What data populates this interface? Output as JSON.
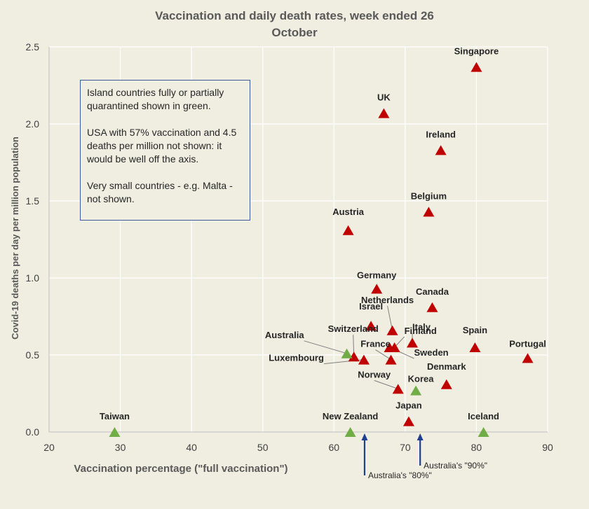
{
  "chart_data": {
    "type": "scatter",
    "title_lines": [
      "Vaccination and daily death rates, week ended 26",
      "October"
    ],
    "xlabel": "Vaccination percentage (\"full vaccination\")",
    "ylabel": "Covid-19 deaths per day per million population",
    "xlim": [
      20,
      90
    ],
    "ylim": [
      0,
      2.5
    ],
    "xticks": [
      "20",
      "30",
      "40",
      "50",
      "60",
      "70",
      "80",
      "90"
    ],
    "yticks": [
      "0.0",
      "0.5",
      "1.0",
      "1.5",
      "2.0",
      "2.5"
    ],
    "grid": true,
    "colors": {
      "other": "#c00000",
      "island": "#70ad47",
      "arrow": "#1f3f8f",
      "note_border": "#3c5a9a"
    },
    "points": [
      {
        "label": "Singapore",
        "x": 80,
        "y": 2.37,
        "group": "other"
      },
      {
        "label": "UK",
        "x": 67,
        "y": 2.07,
        "group": "other"
      },
      {
        "label": "Ireland",
        "x": 75,
        "y": 1.83,
        "group": "other"
      },
      {
        "label": "Belgium",
        "x": 73.3,
        "y": 1.43,
        "group": "other"
      },
      {
        "label": "Austria",
        "x": 62,
        "y": 1.31,
        "group": "other"
      },
      {
        "label": "Germany",
        "x": 66,
        "y": 0.93,
        "group": "other"
      },
      {
        "label": "Canada",
        "x": 73.8,
        "y": 0.81,
        "group": "other"
      },
      {
        "label": "Netherlands",
        "x": 68.2,
        "y": 0.66,
        "group": "other"
      },
      {
        "label": "Israel",
        "x": 65.2,
        "y": 0.69,
        "group": "other"
      },
      {
        "label": "Italy",
        "x": 71,
        "y": 0.58,
        "group": "other"
      },
      {
        "label": "Switzerland",
        "x": 62.8,
        "y": 0.49,
        "group": "other"
      },
      {
        "label": "Luxembourg",
        "x": 64.2,
        "y": 0.47,
        "group": "other"
      },
      {
        "label": "France",
        "x": 68,
        "y": 0.47,
        "group": "other"
      },
      {
        "label": "Finland",
        "x": 68.5,
        "y": 0.55,
        "group": "other"
      },
      {
        "label": "Sweden",
        "x": 67.8,
        "y": 0.55,
        "group": "other"
      },
      {
        "label": "Spain",
        "x": 79.8,
        "y": 0.55,
        "group": "other"
      },
      {
        "label": "Portugal",
        "x": 87.2,
        "y": 0.48,
        "group": "other"
      },
      {
        "label": "Denmark",
        "x": 75.8,
        "y": 0.31,
        "group": "other"
      },
      {
        "label": "Norway",
        "x": 69,
        "y": 0.28,
        "group": "other"
      },
      {
        "label": "Japan",
        "x": 70.5,
        "y": 0.07,
        "group": "other"
      },
      {
        "label": "Australia",
        "x": 61.8,
        "y": 0.51,
        "group": "island"
      },
      {
        "label": "Korea",
        "x": 71.5,
        "y": 0.27,
        "group": "island"
      },
      {
        "label": "Taiwan",
        "x": 29.2,
        "y": 0.0,
        "group": "island"
      },
      {
        "label": "New Zealand",
        "x": 62.3,
        "y": 0.0,
        "group": "island"
      },
      {
        "label": "Iceland",
        "x": 81,
        "y": 0.0,
        "group": "island"
      }
    ],
    "reference_arrows": [
      {
        "label": "Australia's \"80%\"",
        "x": 64.3
      },
      {
        "label": "Australia's \"90%\"",
        "x": 72.1
      }
    ],
    "note_lines": [
      "Island countries  fully or partially quarantined shown in green.",
      "USA with 57% vaccination and 4.5 deaths per million not shown: it would be well off the axis.",
      "Very small countries - e.g. Malta - not shown."
    ]
  }
}
